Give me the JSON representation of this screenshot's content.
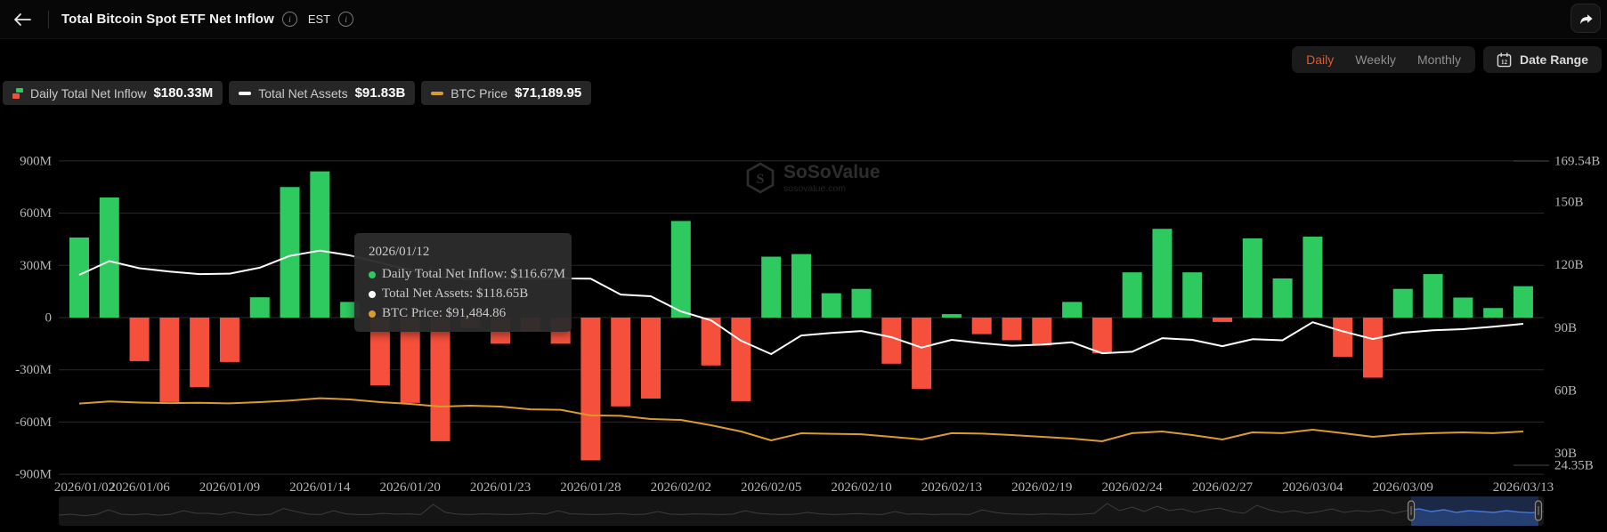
{
  "header": {
    "title": "Total Bitcoin Spot ETF Net Inflow",
    "timezone": "EST"
  },
  "controls": {
    "tabs": [
      "Daily",
      "Weekly",
      "Monthly"
    ],
    "active_tab": "Daily",
    "date_range_label": "Date Range",
    "active_tab_color": "#e05a28"
  },
  "legend": [
    {
      "label": "Daily Total Net Inflow",
      "value": "$180.33M",
      "icon": "bar-split",
      "colors": [
        "#2ec95f",
        "#f4503c"
      ]
    },
    {
      "label": "Total Net Assets",
      "value": "$91.83B",
      "icon": "dash",
      "colors": [
        "#ffffff"
      ]
    },
    {
      "label": "BTC Price",
      "value": "$71,189.95",
      "icon": "dash",
      "colors": [
        "#d99b2f"
      ]
    }
  ],
  "tooltip": {
    "date": "2026/01/12",
    "rows": [
      {
        "text": "Daily Total Net Inflow: $116.67M",
        "color": "#2ec95f"
      },
      {
        "text": "Total Net Assets: $118.65B",
        "color": "#ffffff"
      },
      {
        "text": "BTC Price: $91,484.86",
        "color": "#d99b2f"
      }
    ]
  },
  "watermark": {
    "brand": "SoSoValue",
    "domain": "sosovalue.com"
  },
  "chart_data": {
    "type": "bar",
    "title": "Total Bitcoin Spot ETF Net Inflow",
    "x": [
      "2026/01/02",
      "2026/01/05",
      "2026/01/06",
      "2026/01/07",
      "2026/01/08",
      "2026/01/09",
      "2026/01/12",
      "2026/01/13",
      "2026/01/14",
      "2026/01/15",
      "2026/01/16",
      "2026/01/20",
      "2026/01/21",
      "2026/01/22",
      "2026/01/23",
      "2026/01/26",
      "2026/01/27",
      "2026/01/28",
      "2026/01/29",
      "2026/01/30",
      "2026/02/02",
      "2026/02/03",
      "2026/02/04",
      "2026/02/05",
      "2026/02/06",
      "2026/02/09",
      "2026/02/10",
      "2026/02/11",
      "2026/02/12",
      "2026/02/13",
      "2026/02/17",
      "2026/02/18",
      "2026/02/19",
      "2026/02/20",
      "2026/02/23",
      "2026/02/24",
      "2026/02/25",
      "2026/02/26",
      "2026/02/27",
      "2026/03/02",
      "2026/03/03",
      "2026/03/04",
      "2026/03/05",
      "2026/03/06",
      "2026/03/09",
      "2026/03/10",
      "2026/03/11",
      "2026/03/12",
      "2026/03/13"
    ],
    "x_tick_labels": [
      "2026/01/02",
      "2026/01/06",
      "2026/01/09",
      "2026/01/14",
      "2026/01/20",
      "2026/01/23",
      "2026/01/28",
      "2026/02/02",
      "2026/02/05",
      "2026/02/10",
      "2026/02/13",
      "2026/02/19",
      "2026/02/24",
      "2026/02/27",
      "2026/03/04",
      "2026/03/09",
      "2026/03/13"
    ],
    "series": [
      {
        "name": "Daily Total Net Inflow",
        "type": "bar",
        "unit": "$M",
        "axis": "left",
        "color_positive": "#2ec95f",
        "color_negative": "#f4503c",
        "values": [
          460,
          690,
          -250,
          -485,
          -400,
          -255,
          116.67,
          750,
          840,
          90,
          -390,
          -490,
          -710,
          -60,
          -150,
          -80,
          -150,
          -820,
          -510,
          -465,
          555,
          -275,
          -480,
          350,
          365,
          140,
          165,
          -265,
          -410,
          20,
          -95,
          -130,
          -160,
          90,
          -205,
          260,
          510,
          260,
          -25,
          455,
          225,
          465,
          -225,
          -345,
          165,
          250,
          115,
          55,
          180.33
        ]
      },
      {
        "name": "Total Net Assets",
        "type": "line",
        "unit": "$B",
        "axis": "right",
        "color": "#ffffff",
        "values": [
          115.2,
          121.8,
          118.4,
          116.8,
          115.6,
          115.8,
          118.65,
          124.3,
          126.8,
          124.5,
          121.0,
          117.5,
          114.0,
          113.2,
          113.6,
          113.4,
          113.5,
          113.4,
          105.8,
          105.0,
          97.8,
          93.5,
          83.8,
          77.4,
          86.3,
          87.5,
          88.4,
          85.5,
          80.5,
          84.2,
          82.6,
          81.4,
          81.9,
          83.0,
          77.8,
          78.5,
          85.0,
          84.2,
          81.2,
          84.5,
          84.0,
          92.6,
          88.3,
          84.6,
          87.6,
          88.8,
          89.3,
          90.5,
          91.83
        ]
      },
      {
        "name": "BTC Price",
        "type": "line",
        "unit": "$",
        "axis": "hidden",
        "color": "#d99b2f",
        "values": [
          90500,
          92000,
          91200,
          90800,
          91000,
          90600,
          91484.86,
          92500,
          94200,
          93300,
          91500,
          90250,
          88400,
          89000,
          88400,
          86500,
          86200,
          82250,
          82000,
          79800,
          79200,
          75500,
          71200,
          65040,
          69950,
          69600,
          69300,
          67500,
          65650,
          70000,
          69700,
          68700,
          67500,
          66300,
          64400,
          70000,
          71200,
          68700,
          65650,
          70600,
          70000,
          72400,
          70000,
          67500,
          69300,
          70000,
          70600,
          70000,
          71189.95
        ]
      }
    ],
    "left_axis": {
      "ticks": [
        "900M",
        "600M",
        "300M",
        "0",
        "-300M",
        "-600M",
        "-900M"
      ],
      "min": -900,
      "max": 900,
      "unit": "M"
    },
    "right_axis": {
      "ticks": [
        "169.54B",
        "150B",
        "120B",
        "90B",
        "60B",
        "30B",
        "24.35B"
      ],
      "min": 24.35,
      "max": 169.54,
      "unit": "B"
    },
    "grid": true,
    "legend_position": "top-left",
    "navigator": {
      "selection_start": 0.9107,
      "selection_end": 0.9964,
      "sparkline": [
        0.25,
        0.3,
        0.22,
        0.28,
        0.55,
        0.3,
        0.26,
        0.32,
        0.24,
        0.3,
        0.5,
        0.35,
        0.35,
        0.28,
        0.42,
        0.3,
        0.25,
        0.3,
        0.62,
        0.45,
        0.3,
        0.28,
        0.5,
        0.32,
        0.28,
        0.28,
        0.35,
        0.3,
        0.32,
        0.28,
        0.85,
        0.4,
        0.3,
        0.28,
        0.32,
        0.3,
        0.28,
        0.3,
        0.35,
        0.3,
        0.5,
        0.32,
        0.3,
        0.28,
        0.3,
        0.34,
        0.28,
        0.3,
        0.45,
        0.3,
        0.28,
        0.32,
        0.3,
        0.28,
        0.3,
        0.5,
        0.35,
        0.3,
        0.28,
        0.3,
        0.4,
        0.32,
        0.28,
        0.3,
        0.34,
        0.3,
        0.28,
        0.45,
        0.3,
        0.32,
        0.28,
        0.3,
        0.3,
        0.28,
        0.55,
        0.4,
        0.32,
        0.3,
        0.28,
        0.32,
        0.3,
        0.28,
        0.3,
        0.35,
        0.9,
        0.5,
        0.7,
        0.45,
        0.75,
        0.5,
        0.6,
        0.4,
        0.55,
        0.65,
        0.45,
        0.35,
        0.8,
        0.55,
        0.4,
        0.5,
        0.35,
        0.45,
        0.6,
        0.4,
        0.5,
        0.45,
        0.55,
        0.35,
        0.5,
        0.6,
        0.45,
        0.55,
        0.4,
        0.5,
        0.45,
        0.4,
        0.5,
        0.42,
        0.38,
        0.45
      ]
    }
  }
}
